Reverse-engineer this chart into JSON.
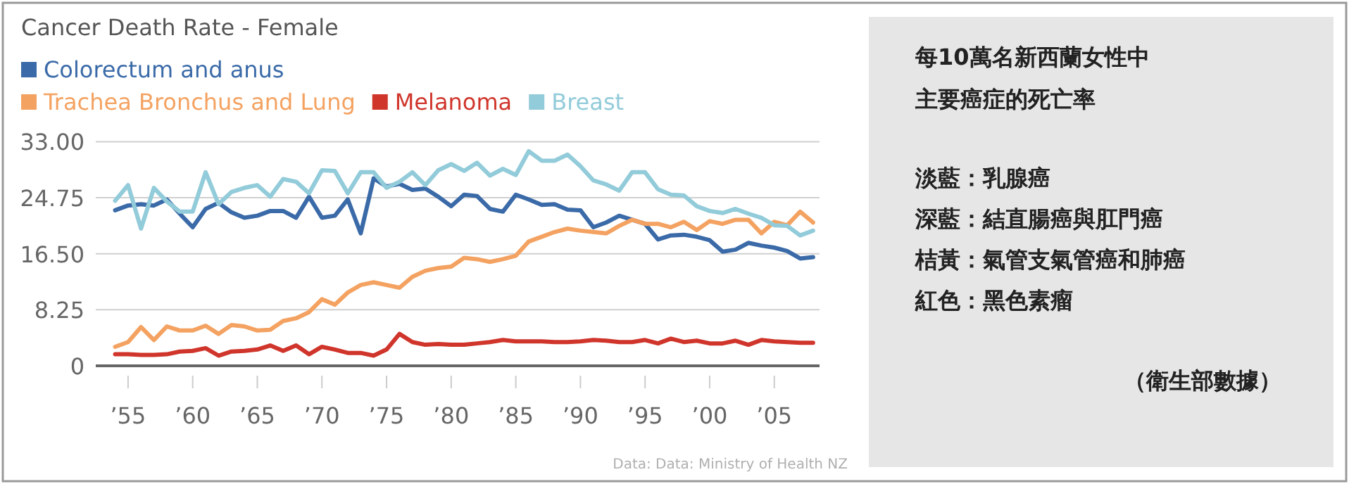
{
  "chart_data": [
    {
      "type": "line",
      "title": "Cancer Death Rate - Female",
      "x": [
        1954,
        1955,
        1956,
        1957,
        1958,
        1959,
        1960,
        1961,
        1962,
        1963,
        1964,
        1965,
        1966,
        1967,
        1968,
        1969,
        1970,
        1971,
        1972,
        1973,
        1974,
        1975,
        1976,
        1977,
        1978,
        1979,
        1980,
        1981,
        1982,
        1983,
        1984,
        1985,
        1986,
        1987,
        1988,
        1989,
        1990,
        1991,
        1992,
        1993,
        1994,
        1995,
        1996,
        1997,
        1998,
        1999,
        2000,
        2001,
        2002,
        2003,
        2004,
        2005,
        2006,
        2007,
        2008
      ],
      "series": [
        {
          "name": "Colorectum and anus",
          "color": "#3a6aa8",
          "values": [
            22.9,
            23.6,
            23.8,
            23.6,
            24.5,
            22.4,
            20.4,
            23.1,
            24.0,
            22.6,
            21.8,
            22.1,
            22.8,
            22.8,
            21.8,
            24.9,
            21.8,
            22.1,
            24.5,
            19.5,
            27.6,
            26.4,
            26.8,
            25.9,
            26.1,
            24.9,
            23.5,
            25.2,
            25.0,
            23.1,
            22.7,
            25.2,
            24.5,
            23.7,
            23.8,
            23.0,
            22.9,
            20.4,
            21.1,
            22.1,
            21.5,
            20.9,
            18.6,
            19.2,
            19.3,
            19.0,
            18.5,
            16.8,
            17.1,
            18.1,
            17.7,
            17.4,
            16.9,
            15.8,
            16.0
          ]
        },
        {
          "name": "Trachea Bronchus and Lung",
          "color": "#f4a261",
          "values": [
            2.8,
            3.5,
            5.7,
            3.8,
            5.8,
            5.2,
            5.2,
            5.9,
            4.7,
            6.0,
            5.8,
            5.2,
            5.3,
            6.6,
            7.0,
            7.9,
            9.8,
            9.0,
            10.8,
            11.9,
            12.3,
            11.9,
            11.5,
            13.1,
            14.0,
            14.4,
            14.6,
            15.9,
            15.7,
            15.3,
            15.7,
            16.2,
            18.3,
            19.0,
            19.7,
            20.2,
            19.9,
            19.7,
            19.5,
            20.6,
            21.5,
            20.9,
            20.9,
            20.4,
            21.2,
            20.0,
            21.3,
            20.9,
            21.5,
            21.5,
            19.5,
            21.2,
            20.7,
            22.7,
            21.1
          ]
        },
        {
          "name": "Melanoma",
          "color": "#d0352b",
          "values": [
            1.7,
            1.7,
            1.6,
            1.6,
            1.7,
            2.1,
            2.2,
            2.6,
            1.5,
            2.1,
            2.2,
            2.4,
            3.0,
            2.2,
            3.0,
            1.7,
            2.8,
            2.4,
            1.9,
            1.9,
            1.5,
            2.4,
            4.7,
            3.5,
            3.1,
            3.2,
            3.1,
            3.1,
            3.3,
            3.5,
            3.8,
            3.6,
            3.6,
            3.6,
            3.5,
            3.5,
            3.6,
            3.8,
            3.7,
            3.5,
            3.5,
            3.8,
            3.3,
            4.0,
            3.5,
            3.7,
            3.3,
            3.3,
            3.7,
            3.1,
            3.8,
            3.6,
            3.5,
            3.4,
            3.4
          ]
        },
        {
          "name": "Breast",
          "color": "#92cbd9",
          "values": [
            24.3,
            26.6,
            20.2,
            26.2,
            24.2,
            22.7,
            22.7,
            28.5,
            23.8,
            25.6,
            26.2,
            26.6,
            24.9,
            27.5,
            27.1,
            25.4,
            28.8,
            28.7,
            25.4,
            28.5,
            28.5,
            26.2,
            27.1,
            28.5,
            26.6,
            28.8,
            29.7,
            28.7,
            29.9,
            28.0,
            29.0,
            28.1,
            31.6,
            30.2,
            30.2,
            31.1,
            29.4,
            27.3,
            26.7,
            25.8,
            28.5,
            28.5,
            26.0,
            25.2,
            25.1,
            23.5,
            22.8,
            22.5,
            23.1,
            22.4,
            21.8,
            20.7,
            20.6,
            19.2,
            19.9
          ]
        }
      ],
      "xlim": [
        1952.5,
        2008.5
      ],
      "xticks": [
        {
          "value": 1955,
          "label": "’55"
        },
        {
          "value": 1960,
          "label": "’60"
        },
        {
          "value": 1965,
          "label": "’65"
        },
        {
          "value": 1970,
          "label": "’70"
        },
        {
          "value": 1975,
          "label": "’75"
        },
        {
          "value": 1980,
          "label": "’80"
        },
        {
          "value": 1985,
          "label": "’85"
        },
        {
          "value": 1990,
          "label": "’90"
        },
        {
          "value": 1995,
          "label": "’95"
        },
        {
          "value": 2000,
          "label": "’00"
        },
        {
          "value": 2005,
          "label": "’05"
        }
      ],
      "ylim": [
        0,
        33
      ],
      "yticks": [
        {
          "value": 0,
          "label": "0"
        },
        {
          "value": 8.25,
          "label": "8.25"
        },
        {
          "value": 16.5,
          "label": "16.50"
        },
        {
          "value": 24.75,
          "label": "24.75"
        },
        {
          "value": 33,
          "label": "33.00"
        }
      ],
      "grid": "y",
      "legend": "top",
      "annotations": [
        "Data: Data: Ministry of Health NZ"
      ]
    },
    {
      "type": "other",
      "title": "每10萬名新西蘭女性中主要癌症的死亡率",
      "annotations": [
        "淡藍：乳腺癌",
        "深藍：結直腸癌與肛門癌",
        "桔黃：氣管支氣管癌和肺癌",
        "紅色：黑色素瘤",
        "（衛生部數據）"
      ]
    }
  ]
}
